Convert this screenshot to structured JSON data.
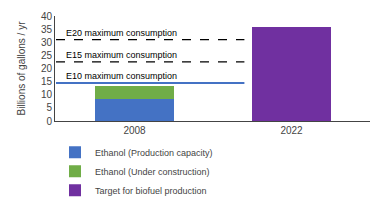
{
  "chart_data": {
    "type": "bar",
    "categories": [
      "2008",
      "2022"
    ],
    "series": [
      {
        "name": "Ethanol (Production capacity)",
        "color": "#4472c4",
        "values": [
          8.5,
          null
        ]
      },
      {
        "name": "Ethanol (Under construction)",
        "color": "#70ad47",
        "values": [
          5.0,
          null
        ]
      },
      {
        "name": "Target for biofuel production",
        "color": "#7030a0",
        "values": [
          null,
          36.0
        ]
      }
    ],
    "stacked": true,
    "ylabel": "Billions of gallons / yr",
    "ylim": [
      0,
      40
    ],
    "yticks": [
      0,
      5,
      10,
      15,
      20,
      25,
      30,
      35,
      40
    ],
    "grid": false,
    "legend": "bottom",
    "lines": [
      {
        "y": 14.5,
        "label": "E10 maximum consumption",
        "color": "#4472c4",
        "line_style": "solid"
      },
      {
        "y": 22.5,
        "label": "E15 maximum consumption",
        "color": "black",
        "line_style": "dashed"
      },
      {
        "y": 31.0,
        "label": "E20 maximum consumption",
        "color": "black",
        "line_style": "dashed"
      }
    ]
  }
}
